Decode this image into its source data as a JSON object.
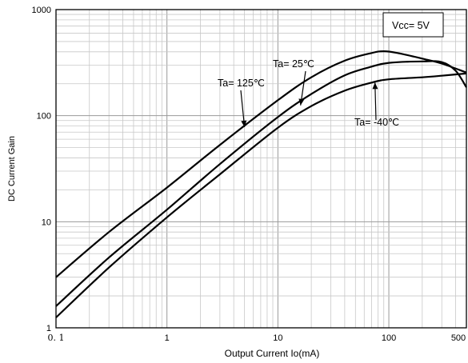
{
  "chart_data": {
    "type": "line",
    "xscale": "log",
    "yscale": "log",
    "xlim": [
      0.1,
      500
    ],
    "ylim": [
      1,
      1000
    ],
    "xlabel": "Output Current   Io(mA)",
    "ylabel": "DC Current Gain",
    "x_tick_labels": [
      "0. 1",
      "1",
      "10",
      "100",
      "500"
    ],
    "x_tick_values": [
      0.1,
      1,
      10,
      100,
      500
    ],
    "y_tick_labels": [
      "1",
      "10",
      "100",
      "1000"
    ],
    "y_tick_values": [
      1,
      10,
      100,
      1000
    ],
    "grid": true,
    "legend_box": {
      "text": "Vcc= 5V",
      "placement": "top-right"
    },
    "series": [
      {
        "name": "Ta= 125℃",
        "x": [
          0.1,
          0.3,
          1,
          3,
          10,
          20,
          40,
          70,
          90,
          120,
          200,
          300,
          500
        ],
        "y": [
          3,
          8,
          21,
          53,
          140,
          230,
          330,
          390,
          405,
          390,
          345,
          310,
          255
        ]
      },
      {
        "name": "Ta= 25℃",
        "x": [
          0.1,
          0.3,
          1,
          3,
          10,
          20,
          40,
          70,
          100,
          200,
          300,
          400,
          500
        ],
        "y": [
          1.6,
          4.6,
          13,
          35,
          97,
          160,
          240,
          290,
          315,
          325,
          320,
          265,
          185
        ]
      },
      {
        "name": "Ta= -40℃",
        "x": [
          0.1,
          0.3,
          1,
          3,
          10,
          20,
          40,
          70,
          100,
          200,
          300,
          500
        ],
        "y": [
          1.25,
          3.7,
          11,
          28,
          77,
          123,
          172,
          205,
          220,
          230,
          238,
          250
        ]
      }
    ],
    "annotations": [
      {
        "text": "Ta= 125℃",
        "series": "Ta= 125℃",
        "x": 5,
        "y": 78
      },
      {
        "text": "Ta= 25℃",
        "series": "Ta= 25℃",
        "x": 16,
        "y": 125
      },
      {
        "text": "Ta= -40℃",
        "series": "Ta= -40℃",
        "x": 75,
        "y": 205
      }
    ]
  }
}
